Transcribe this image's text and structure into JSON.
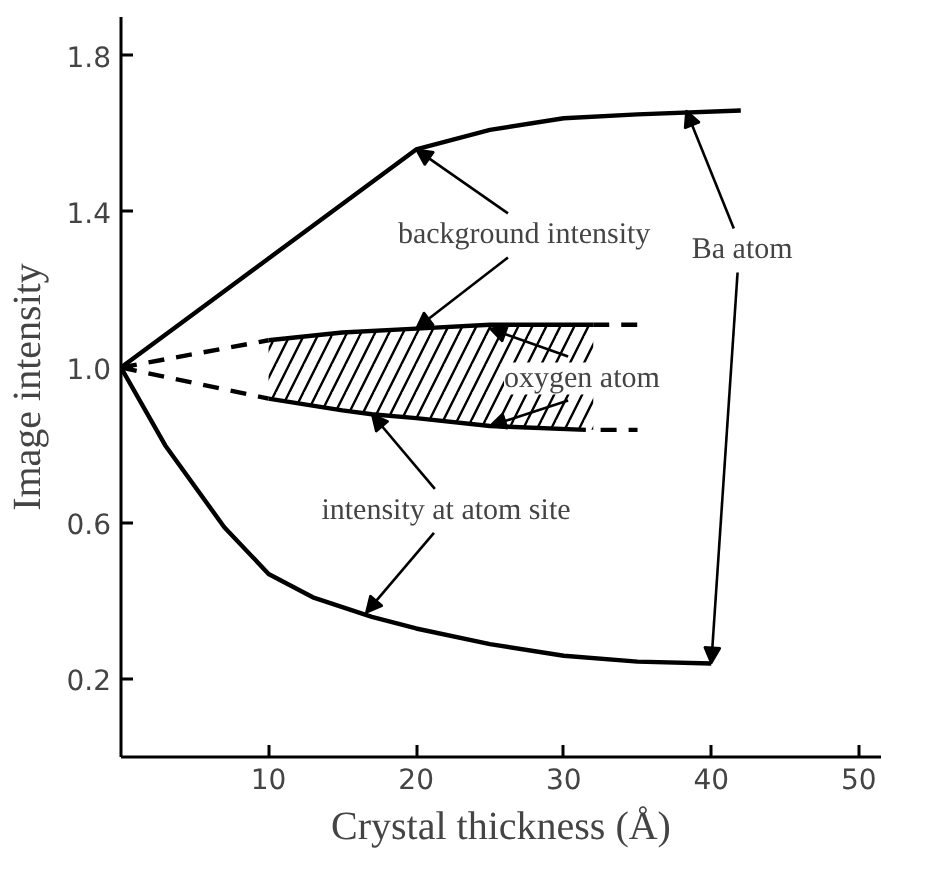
{
  "chart_data": {
    "type": "line",
    "xlabel": "Crystal thickness (Å)",
    "ylabel": "Image intensity",
    "xlim": [
      0,
      51.5
    ],
    "ylim": [
      0,
      1.9
    ],
    "xticks": [
      10,
      20,
      30,
      40,
      50
    ],
    "yticks": [
      {
        "value": 0.2,
        "label": "0.2"
      },
      {
        "value": 0.6,
        "label": "0.6"
      },
      {
        "value": 1.0,
        "label": "1.0"
      },
      {
        "value": 1.4,
        "label": "1.4"
      },
      {
        "value": 1.8,
        "label": "1.8"
      }
    ],
    "grid": false,
    "marker": "none",
    "series": [
      {
        "color": "#000000",
        "line_style": "solid",
        "x": [
          0,
          5,
          10,
          15,
          20,
          25,
          30,
          35,
          42
        ],
        "values": [
          1.0,
          1.14,
          1.28,
          1.42,
          1.56,
          1.61,
          1.64,
          1.65,
          1.66
        ]
      },
      {
        "color": "#000000",
        "line_style": "solid",
        "x": [
          0,
          3,
          7,
          10,
          13,
          17,
          20,
          25,
          30,
          35,
          40
        ],
        "values": [
          1.0,
          0.8,
          0.59,
          0.47,
          0.41,
          0.36,
          0.33,
          0.29,
          0.26,
          0.245,
          0.24
        ]
      },
      {
        "color": "#000000",
        "line_style": "dashed",
        "x": [
          0,
          10
        ],
        "values": [
          1.0,
          1.07
        ]
      },
      {
        "color": "#000000",
        "line_style": "solid",
        "x": [
          10,
          15,
          20,
          25,
          32
        ],
        "values": [
          1.07,
          1.09,
          1.1,
          1.11,
          1.11
        ],
        "lower": [
          0.92,
          0.89,
          0.87,
          0.85,
          0.84
        ],
        "upper": [
          1.07,
          1.09,
          1.1,
          1.11,
          1.11
        ]
      },
      {
        "color": "#000000",
        "line_style": "dashed",
        "x": [
          32,
          35.4
        ],
        "values": [
          1.11,
          1.11
        ]
      },
      {
        "color": "#000000",
        "line_style": "dashed",
        "x": [
          0,
          10
        ],
        "values": [
          1.0,
          0.92
        ]
      },
      {
        "color": "#000000",
        "line_style": "solid",
        "x": [
          10,
          15,
          17,
          20,
          25,
          31.5
        ],
        "values": [
          0.92,
          0.89,
          0.88,
          0.87,
          0.85,
          0.84
        ]
      },
      {
        "color": "#000000",
        "line_style": "dashed",
        "x": [
          32.5,
          35
        ],
        "values": [
          0.84,
          0.84
        ]
      }
    ],
    "annotations": [
      {
        "text": "background intensity",
        "x": 20,
        "y": 1.56
      },
      {
        "text": "oxygen atom",
        "x": 25,
        "y": 1.1
      },
      {
        "text": "intensity at atom site",
        "x": 16.6,
        "y": 0.37
      },
      {
        "text": "Ba atom",
        "x": 38.3,
        "y": 1.66
      }
    ]
  }
}
